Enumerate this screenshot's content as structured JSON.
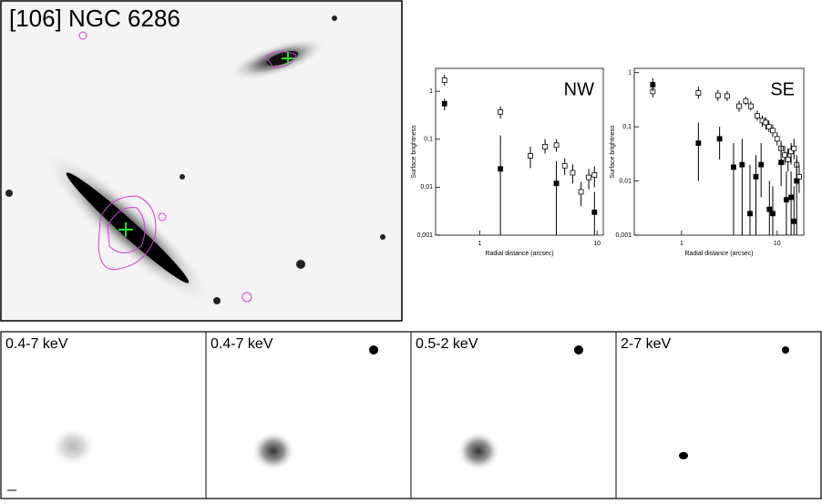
{
  "image_title": "[106] NGC 6286",
  "band_labels": [
    "0.4-7 keV",
    "0.4-7 keV",
    "0.5-2 keV",
    "2-7 keV"
  ],
  "chart_data": [
    {
      "type": "scatter",
      "annotation": "NW",
      "xlabel": "Radial distance (arcsec)",
      "ylabel": "Surface brightness",
      "xlog": true,
      "ylog": true,
      "xlim": [
        0.42,
        11.3
      ],
      "ylim": [
        0.001,
        3
      ],
      "xticks": [
        1,
        10
      ],
      "yticks": [
        {
          "value": 0.001,
          "label": "0,001"
        },
        {
          "value": 0.01,
          "label": "0,01"
        },
        {
          "value": 0.1,
          "label": "0,1"
        },
        1
      ],
      "series": [
        {
          "marker": "open-square",
          "color": "#000000",
          "x": [
            0.5,
            1.5,
            2.7,
            3.6,
            4.5,
            5.3,
            6.2,
            7.3,
            8.5,
            9.5
          ],
          "values": [
            1.7,
            0.37,
            0.045,
            0.07,
            0.075,
            0.028,
            0.02,
            0.008,
            0.016,
            0.018
          ],
          "lower": [
            1.3,
            0.27,
            0.025,
            0.05,
            0.055,
            0.018,
            0.012,
            0.004,
            0.009,
            0.01
          ],
          "upper": [
            2.2,
            0.48,
            0.07,
            0.1,
            0.1,
            0.04,
            0.03,
            0.013,
            0.024,
            0.027
          ]
        },
        {
          "marker": "filled-square",
          "color": "#000000",
          "x": [
            0.5,
            1.5,
            4.5,
            9.5
          ],
          "values": [
            0.55,
            0.024,
            0.012,
            0.003
          ],
          "lower": [
            0.4,
            0.001,
            0.001,
            0.001
          ],
          "upper": [
            0.7,
            0.12,
            0.035,
            0.008
          ]
        }
      ]
    },
    {
      "type": "scatter",
      "annotation": "SE",
      "xlabel": "Radial distance (arcsec)",
      "ylabel": "Surface brightness",
      "xlog": true,
      "ylog": true,
      "xlim": [
        0.32,
        19
      ],
      "ylim": [
        0.001,
        1.2
      ],
      "xticks": [
        1,
        10
      ],
      "yticks": [
        {
          "value": 0.001,
          "label": "0,001"
        },
        {
          "value": 0.01,
          "label": "0,01"
        },
        {
          "value": 0.1,
          "label": "0,1"
        },
        1
      ],
      "series": [
        {
          "marker": "open-square",
          "color": "#000000",
          "x": [
            0.5,
            1.5,
            2.4,
            3,
            4,
            4.7,
            5.3,
            6.2,
            7,
            7.6,
            8.2,
            9,
            10,
            11,
            12,
            13,
            14,
            15,
            16,
            17
          ],
          "values": [
            0.45,
            0.42,
            0.38,
            0.37,
            0.24,
            0.3,
            0.24,
            0.16,
            0.13,
            0.12,
            0.1,
            0.085,
            0.06,
            0.04,
            0.03,
            0.025,
            0.035,
            0.04,
            0.02,
            0.012
          ],
          "lower": [
            0.35,
            0.33,
            0.3,
            0.3,
            0.19,
            0.25,
            0.2,
            0.13,
            0.1,
            0.09,
            0.08,
            0.065,
            0.045,
            0.03,
            0.02,
            0.015,
            0.02,
            0.025,
            0.01,
            0.006
          ],
          "upper": [
            0.6,
            0.55,
            0.48,
            0.46,
            0.3,
            0.36,
            0.3,
            0.2,
            0.16,
            0.15,
            0.13,
            0.11,
            0.08,
            0.055,
            0.045,
            0.04,
            0.05,
            0.06,
            0.03,
            0.02
          ]
        },
        {
          "marker": "filled-square",
          "color": "#000000",
          "x": [
            0.5,
            1.5,
            2.5,
            3.5,
            4.3,
            5.2,
            6,
            6.8,
            8.3,
            9,
            11,
            12.5,
            14,
            15,
            16
          ],
          "values": [
            0.6,
            0.05,
            0.06,
            0.018,
            0.02,
            0.0025,
            0.012,
            0.02,
            0.003,
            0.0025,
            0.022,
            0.0045,
            0.005,
            0.0018,
            0.01
          ],
          "lower": [
            0.45,
            0.01,
            0.025,
            0.001,
            0.001,
            0.001,
            0.001,
            0.005,
            0.001,
            0.001,
            0.008,
            0.001,
            0.001,
            0.001,
            0.001
          ],
          "upper": [
            0.8,
            0.12,
            0.1,
            0.05,
            0.06,
            0.02,
            0.03,
            0.05,
            0.01,
            0.008,
            0.05,
            0.015,
            0.015,
            0.008,
            0.025
          ]
        }
      ]
    }
  ]
}
